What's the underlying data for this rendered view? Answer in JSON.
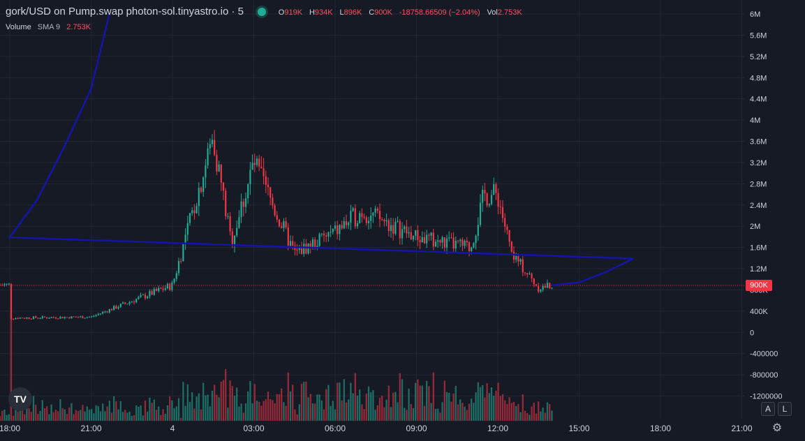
{
  "legend": {
    "symbol": "gork/USD on Pump.swap photon-sol.tinyastro.io · 5",
    "open_label": "O",
    "open": "919K",
    "high_label": "H",
    "high": "934K",
    "low_label": "L",
    "low": "896K",
    "close_label": "C",
    "close": "900K",
    "change": "-18758.66509 (−2.04%)",
    "vol_label": "Vol",
    "vol": "2.753K"
  },
  "volume_legend": {
    "label": "Volume",
    "sma": "SMA 9",
    "value": "2.753K"
  },
  "last_price_label": "900K",
  "buttons": {
    "auto": "A",
    "log": "L"
  },
  "logo": "TV",
  "settings_icon": "gear-icon",
  "colors": {
    "up": "#22ab94",
    "down": "#f23645",
    "line": "#1414a8",
    "background": "#161a25"
  },
  "chart_data": {
    "type": "candlestick",
    "y_ticks": [
      "6M",
      "5.6M",
      "5.2M",
      "4.8M",
      "4.4M",
      "4M",
      "3.6M",
      "3.2M",
      "2.8M",
      "2.4M",
      "2M",
      "1.6M",
      "1.2M",
      "800K",
      "400K",
      "0",
      "-400000",
      "-800000",
      "-1200000"
    ],
    "x_ticks": [
      "18:00",
      "21:00",
      "4",
      "03:00",
      "06:00",
      "09:00",
      "12:00",
      "15:00",
      "18:00",
      "21:00"
    ],
    "ylim": [
      -1200000,
      6000000
    ],
    "last_price": 900000,
    "price_path_approx": [
      {
        "t": "18:00",
        "price": 280000
      },
      {
        "t": "21:00",
        "price": 300000
      },
      {
        "t": "00:00",
        "price": 900000
      },
      {
        "t": "01:30",
        "price": 3700000
      },
      {
        "t": "02:10",
        "price": 1700000
      },
      {
        "t": "03:00",
        "price": 3200000
      },
      {
        "t": "04:30",
        "price": 1500000
      },
      {
        "t": "06:00",
        "price": 1900000
      },
      {
        "t": "07:00",
        "price": 2300000
      },
      {
        "t": "09:00",
        "price": 1800000
      },
      {
        "t": "11:00",
        "price": 1600000
      },
      {
        "t": "11:30",
        "price": 2600000
      },
      {
        "t": "12:00",
        "price": 2600000
      },
      {
        "t": "12:30",
        "price": 1500000
      },
      {
        "t": "13:30",
        "price": 850000
      },
      {
        "t": "14:00",
        "price": 900000
      }
    ],
    "projection_line": [
      {
        "t": "14:00",
        "price": 900000
      },
      {
        "t": "15:00",
        "price": 950000
      },
      {
        "t": "16:00",
        "price": 1150000
      },
      {
        "t": "17:00",
        "price": 1400000
      },
      {
        "t": "18:00",
        "price": 1800000
      },
      {
        "t": "19:00",
        "price": 2500000
      },
      {
        "t": "20:00",
        "price": 3500000
      },
      {
        "t": "21:00",
        "price": 4600000
      },
      {
        "t": "21:40",
        "price": 6000000
      }
    ]
  }
}
